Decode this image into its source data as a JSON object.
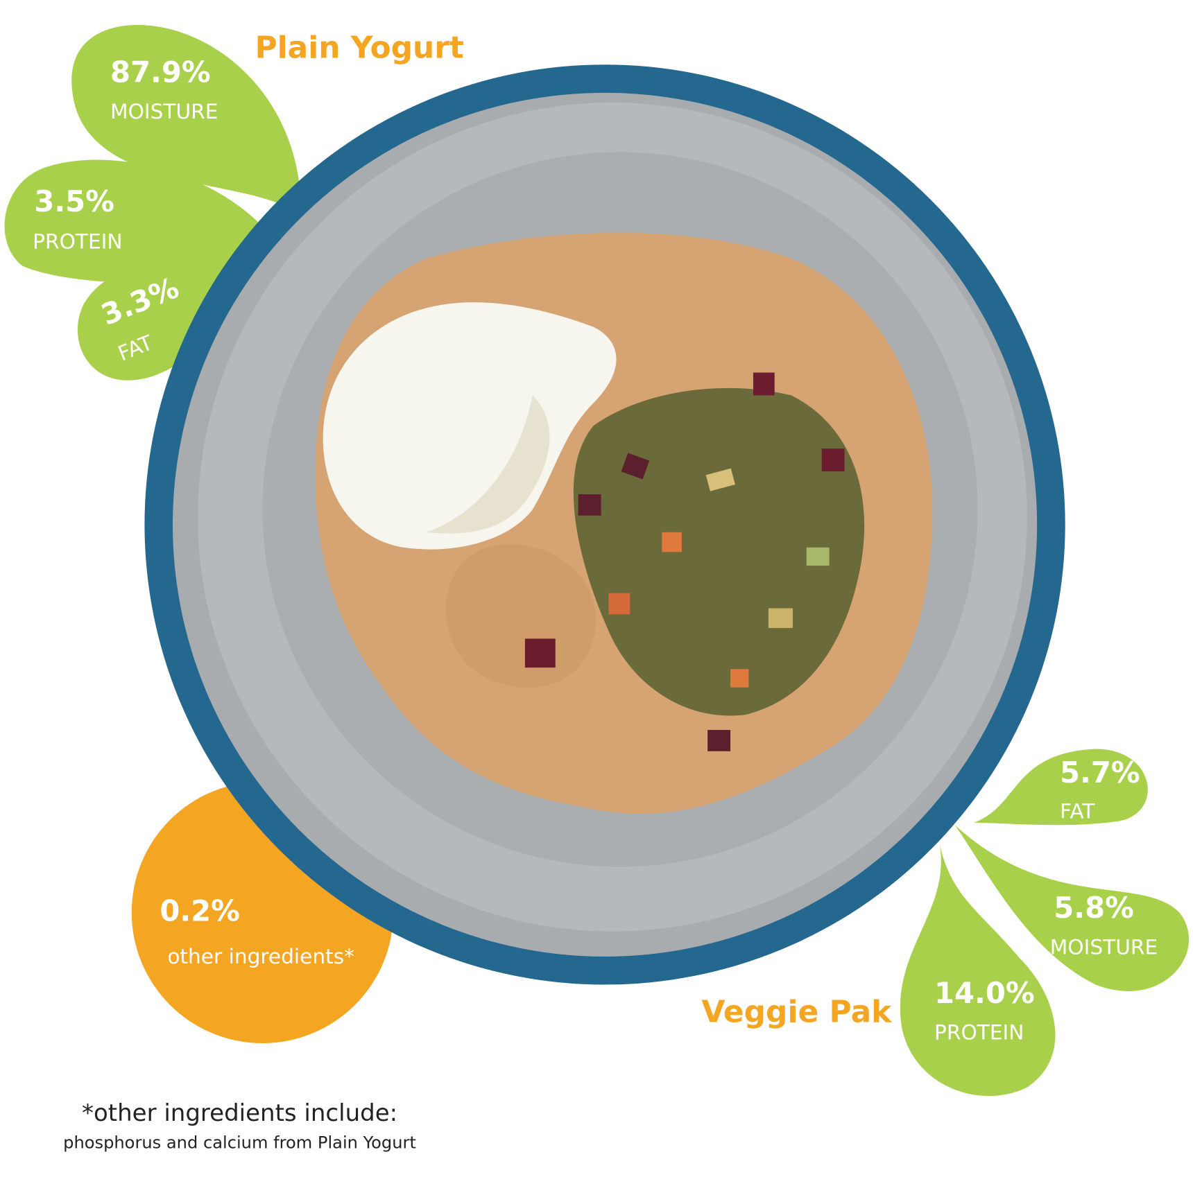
{
  "plain_yogurt": {
    "title": "Plain Yogurt",
    "stats": [
      {
        "value": "87.9%",
        "label": "MOISTURE"
      },
      {
        "value": "3.5%",
        "label": "PROTEIN"
      },
      {
        "value": "3.3%",
        "label": "FAT"
      }
    ]
  },
  "veggie_pak": {
    "title": "Veggie Pak",
    "stats": [
      {
        "value": "5.7%",
        "label": "FAT"
      },
      {
        "value": "5.8%",
        "label": "MOISTURE"
      },
      {
        "value": "14.0%",
        "label": "PROTEIN"
      }
    ]
  },
  "other": {
    "value": "0.2%",
    "label": "other ingredients*"
  },
  "footnote": {
    "heading": "*other ingredients include:",
    "detail": "phosphorus and calcium from Plain Yogurt"
  }
}
